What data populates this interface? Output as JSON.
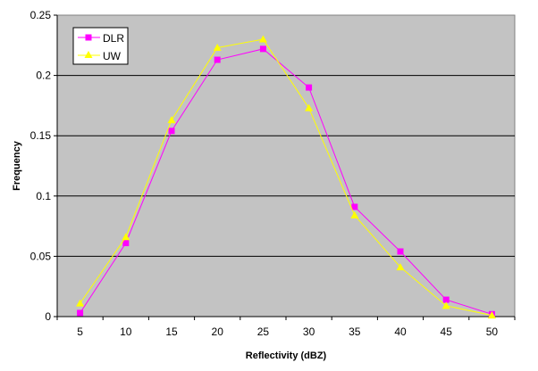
{
  "chart_data": {
    "type": "line",
    "title": "",
    "xlabel": "Reflectivity (dBZ)",
    "ylabel": "Frequency",
    "categories": [
      "5",
      "10",
      "15",
      "20",
      "25",
      "30",
      "35",
      "40",
      "45",
      "50"
    ],
    "ylim": [
      0,
      0.25
    ],
    "yticks": [
      "0",
      "0.05",
      "0.1",
      "0.15",
      "0.2",
      "0.25"
    ],
    "ytick_values": [
      0,
      0.05,
      0.1,
      0.15,
      0.2,
      0.25
    ],
    "grid": true,
    "legend_position": "top-left",
    "series": [
      {
        "name": "DLR",
        "color": "#ff00ff",
        "marker": "square",
        "values": [
          0.003,
          0.061,
          0.154,
          0.213,
          0.222,
          0.19,
          0.091,
          0.054,
          0.014,
          0.002
        ]
      },
      {
        "name": "UW",
        "color": "#ffff00",
        "marker": "triangle",
        "values": [
          0.011,
          0.066,
          0.163,
          0.223,
          0.23,
          0.173,
          0.084,
          0.041,
          0.009,
          0.001
        ]
      }
    ],
    "plot_background": "#c0c0c0"
  }
}
